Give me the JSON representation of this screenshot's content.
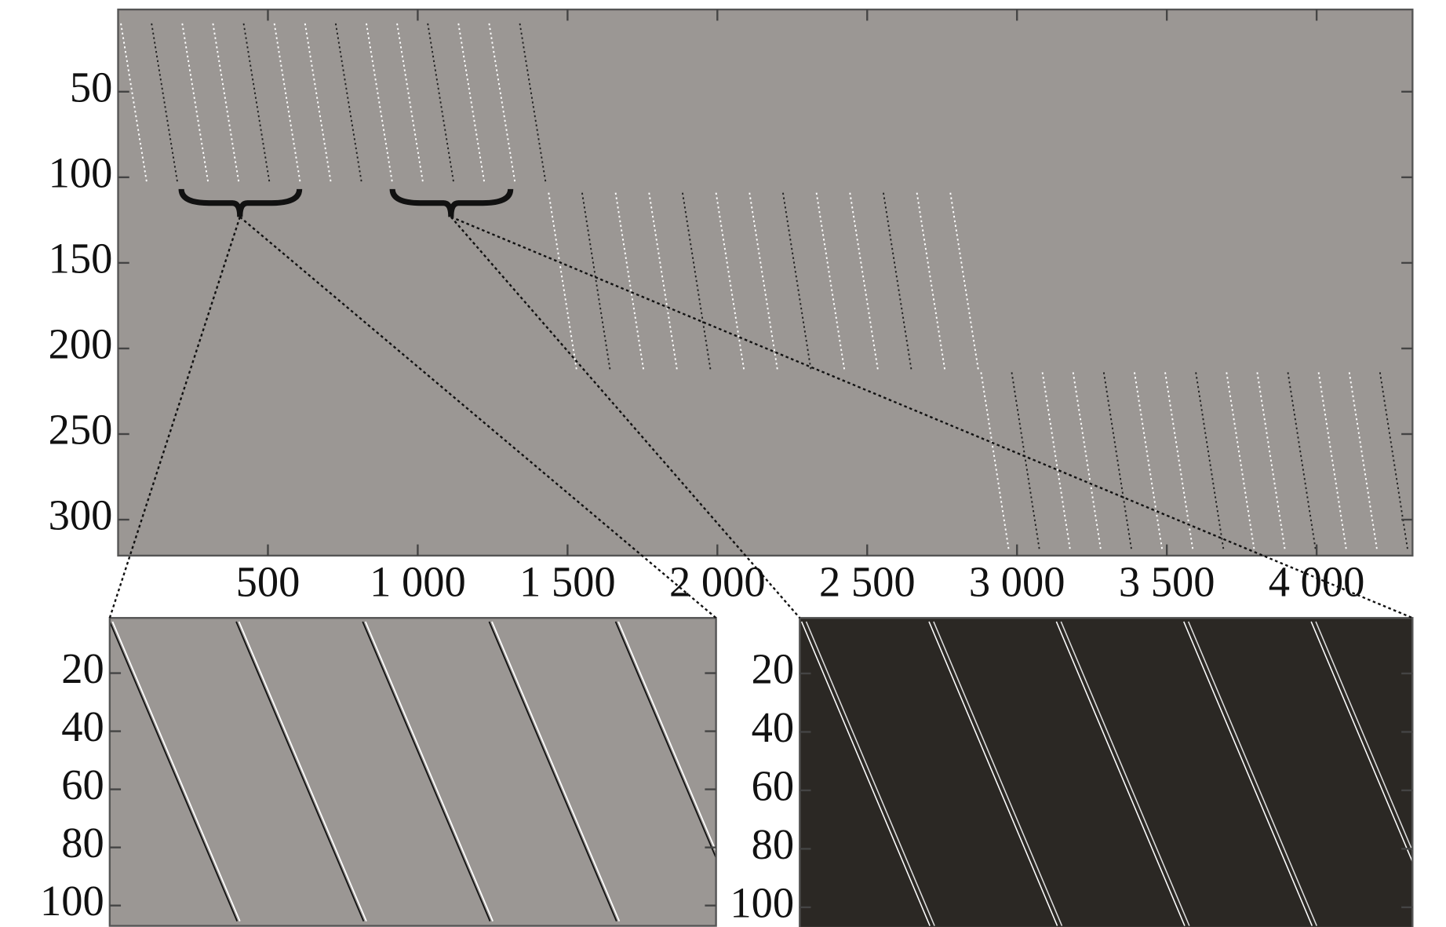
{
  "chart_data": [
    {
      "type": "image",
      "color": "#9b9794",
      "ylim": [
        321,
        2
      ],
      "yticks": [
        50,
        100,
        150,
        200,
        250,
        300
      ],
      "xlim": [
        0,
        4320
      ],
      "xticks": [
        500,
        {
          "value": 1000,
          "label": "1 000"
        },
        {
          "value": 1500,
          "label": "1 500"
        },
        {
          "value": 2000,
          "label": "2 000"
        },
        {
          "value": 2500,
          "label": "2 500"
        },
        {
          "value": 3000,
          "label": "3 000"
        },
        {
          "value": 3500,
          "label": "3 500"
        },
        {
          "value": 4000,
          "label": "4 000"
        }
      ]
    },
    {
      "type": "image",
      "color": "#9b9794",
      "ylim": [
        107,
        1
      ],
      "yticks": [
        20,
        40,
        60,
        80,
        100
      ]
    },
    {
      "type": "image",
      "color": "#2b2824",
      "ylim": [
        107,
        1
      ],
      "yticks": [
        20,
        40,
        60,
        80,
        100
      ]
    }
  ]
}
